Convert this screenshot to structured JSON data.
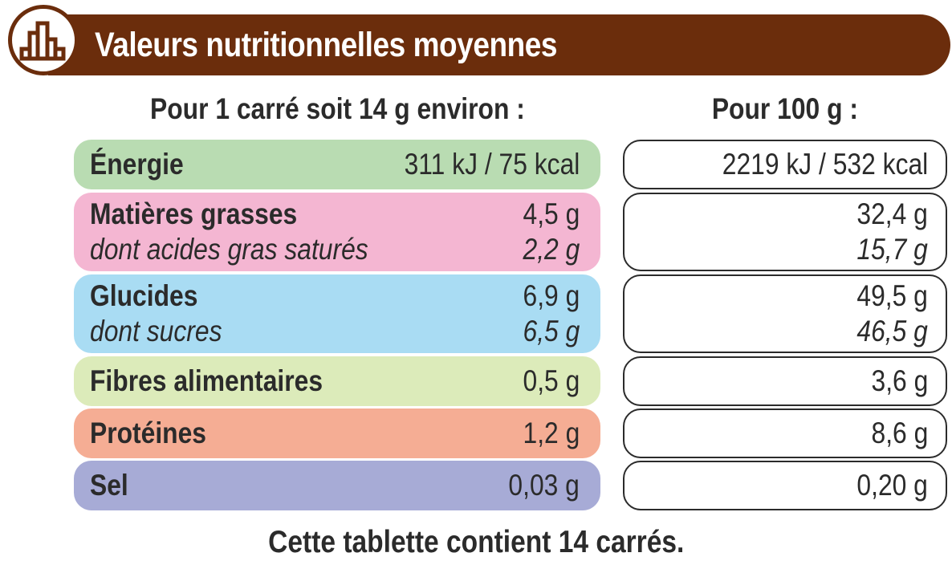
{
  "header": {
    "title": "Valeurs nutritionnelles moyennes",
    "icon": "bar-chart-icon",
    "color": "#6b2d0c"
  },
  "columns": {
    "per_portion": "Pour 1 carré soit 14 g environ :",
    "per_100g": "Pour 100 g :"
  },
  "rows": [
    {
      "label": "Énergie",
      "portion": "311 kJ / 75 kcal",
      "per100": "2219 kJ / 532 kcal",
      "color": "#b9dcb2"
    },
    {
      "label": "Matières grasses",
      "portion": "4,5 g",
      "per100": "32,4 g",
      "sub_label": "dont acides gras saturés",
      "sub_portion": "2,2 g",
      "sub_per100": "15,7 g",
      "color": "#f4b6d2"
    },
    {
      "label": "Glucides",
      "portion": "6,9 g",
      "per100": "49,5 g",
      "sub_label": "dont sucres",
      "sub_portion": "6,5 g",
      "sub_per100": "46,5 g",
      "color": "#a9dcf3"
    },
    {
      "label": "Fibres alimentaires",
      "portion": "0,5 g",
      "per100": "3,6 g",
      "color": "#dcebba"
    },
    {
      "label": "Protéines",
      "portion": "1,2 g",
      "per100": "8,6 g",
      "color": "#f5ad94"
    },
    {
      "label": "Sel",
      "portion": "0,03 g",
      "per100": "0,20 g",
      "color": "#a7abd6"
    }
  ],
  "footer": "Cette tablette contient 14 carrés."
}
